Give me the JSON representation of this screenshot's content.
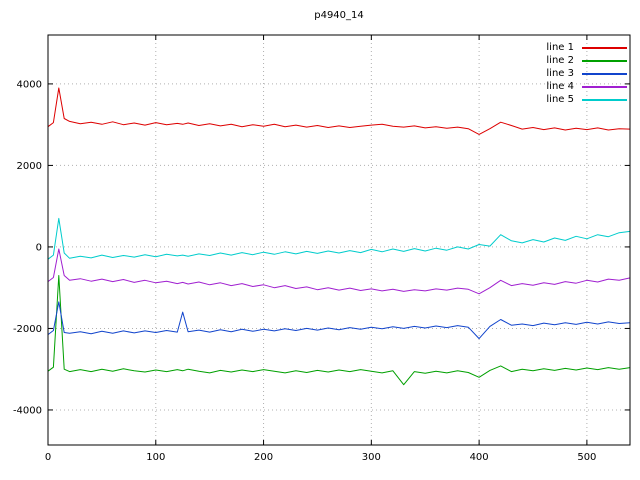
{
  "chart_data": {
    "type": "line",
    "title": "p4940_14",
    "xlabel": "",
    "ylabel": "",
    "xlim": [
      0,
      540
    ],
    "ylim": [
      -4860,
      5200
    ],
    "xticks": [
      0,
      100,
      200,
      300,
      400,
      500
    ],
    "yticks": [
      -4000,
      -2000,
      0,
      2000,
      4000
    ],
    "grid": true,
    "legend_position": "top-right",
    "x": [
      0,
      5,
      10,
      15,
      20,
      30,
      40,
      50,
      60,
      70,
      80,
      90,
      100,
      110,
      120,
      125,
      130,
      140,
      150,
      160,
      170,
      180,
      190,
      200,
      210,
      220,
      230,
      240,
      250,
      260,
      270,
      280,
      290,
      300,
      310,
      320,
      330,
      340,
      350,
      360,
      370,
      380,
      390,
      400,
      410,
      420,
      430,
      440,
      450,
      460,
      470,
      480,
      490,
      500,
      510,
      520,
      530,
      540
    ],
    "series": [
      {
        "name": "line 1",
        "color": "#dd0000",
        "values": [
          2950,
          3050,
          3900,
          3150,
          3080,
          3020,
          3060,
          3010,
          3070,
          3000,
          3040,
          2990,
          3050,
          3000,
          3030,
          3010,
          3040,
          2980,
          3020,
          2970,
          3010,
          2950,
          3000,
          2960,
          3010,
          2950,
          2990,
          2940,
          2980,
          2930,
          2970,
          2930,
          2960,
          2990,
          3010,
          2960,
          2940,
          2970,
          2920,
          2950,
          2910,
          2940,
          2900,
          2760,
          2900,
          3060,
          2980,
          2890,
          2930,
          2880,
          2920,
          2870,
          2910,
          2880,
          2920,
          2870,
          2900,
          2890
        ]
      },
      {
        "name": "line 2",
        "color": "#00a000",
        "values": [
          -3050,
          -2950,
          -700,
          -3000,
          -3060,
          -3010,
          -3060,
          -3000,
          -3050,
          -2990,
          -3040,
          -3070,
          -3020,
          -3060,
          -3010,
          -3040,
          -3000,
          -3050,
          -3090,
          -3030,
          -3070,
          -3020,
          -3060,
          -3010,
          -3050,
          -3090,
          -3040,
          -3080,
          -3030,
          -3070,
          -3020,
          -3060,
          -3010,
          -3050,
          -3090,
          -3040,
          -3380,
          -3060,
          -3100,
          -3050,
          -3090,
          -3040,
          -3080,
          -3200,
          -3030,
          -2920,
          -3060,
          -3000,
          -3040,
          -2990,
          -3030,
          -2980,
          -3020,
          -2970,
          -3010,
          -2960,
          -3000,
          -2960
        ]
      },
      {
        "name": "line 3",
        "color": "#1144cc",
        "values": [
          -2150,
          -2050,
          -1350,
          -2100,
          -2120,
          -2080,
          -2130,
          -2070,
          -2120,
          -2060,
          -2110,
          -2060,
          -2100,
          -2050,
          -2090,
          -1600,
          -2080,
          -2040,
          -2090,
          -2030,
          -2080,
          -2020,
          -2070,
          -2020,
          -2060,
          -2010,
          -2050,
          -2000,
          -2040,
          -1990,
          -2030,
          -1980,
          -2020,
          -1970,
          -2010,
          -1960,
          -2000,
          -1950,
          -1990,
          -1940,
          -1980,
          -1930,
          -1970,
          -2250,
          -1950,
          -1780,
          -1920,
          -1890,
          -1930,
          -1870,
          -1910,
          -1860,
          -1900,
          -1850,
          -1890,
          -1840,
          -1880,
          -1860
        ]
      },
      {
        "name": "line 4",
        "color": "#a020d0",
        "values": [
          -850,
          -750,
          -50,
          -700,
          -820,
          -780,
          -840,
          -790,
          -850,
          -800,
          -870,
          -820,
          -880,
          -840,
          -900,
          -870,
          -910,
          -860,
          -930,
          -880,
          -950,
          -900,
          -970,
          -930,
          -1000,
          -950,
          -1020,
          -980,
          -1050,
          -1000,
          -1060,
          -1010,
          -1070,
          -1030,
          -1080,
          -1040,
          -1090,
          -1050,
          -1080,
          -1030,
          -1060,
          -1010,
          -1040,
          -1150,
          -1000,
          -820,
          -950,
          -900,
          -940,
          -880,
          -920,
          -850,
          -890,
          -820,
          -860,
          -790,
          -820,
          -760
        ]
      },
      {
        "name": "line 5",
        "color": "#00cccc",
        "values": [
          -300,
          -200,
          700,
          -150,
          -280,
          -230,
          -270,
          -200,
          -260,
          -210,
          -250,
          -190,
          -240,
          -180,
          -220,
          -200,
          -230,
          -170,
          -210,
          -150,
          -200,
          -140,
          -190,
          -130,
          -180,
          -120,
          -170,
          -110,
          -160,
          -100,
          -150,
          -90,
          -140,
          -60,
          -120,
          -50,
          -110,
          -40,
          -100,
          -30,
          -80,
          0,
          -50,
          60,
          20,
          300,
          150,
          100,
          180,
          120,
          220,
          160,
          260,
          200,
          300,
          250,
          350,
          380
        ]
      }
    ]
  }
}
